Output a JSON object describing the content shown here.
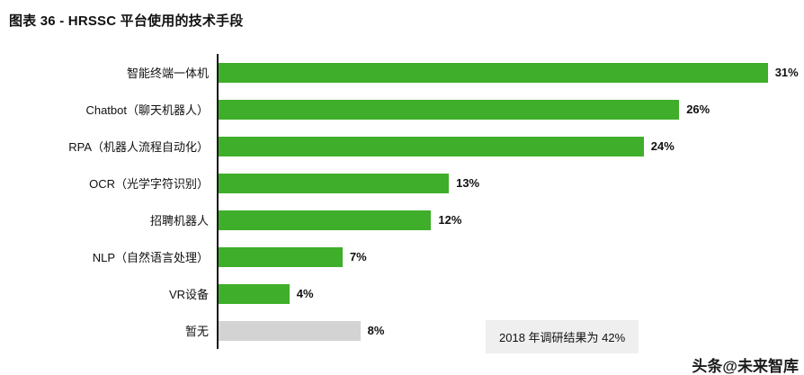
{
  "title": "图表 36 - HRSSC 平台使用的技术手段",
  "chart_data": {
    "type": "bar",
    "orientation": "horizontal",
    "title": "图表 36 - HRSSC 平台使用的技术手段",
    "categories": [
      "智能终端一体机",
      "Chatbot（聊天机器人）",
      "RPA（机器人流程自动化）",
      "OCR（光学字符识别）",
      "招聘机器人",
      "NLP（自然语言处理）",
      "VR设备",
      "暂无"
    ],
    "values": [
      31,
      26,
      24,
      13,
      12,
      7,
      4,
      8
    ],
    "value_labels": [
      "31%",
      "26%",
      "24%",
      "13%",
      "12%",
      "7%",
      "4%",
      "8%"
    ],
    "bar_colors": [
      "#3fae2a",
      "#3fae2a",
      "#3fae2a",
      "#3fae2a",
      "#3fae2a",
      "#3fae2a",
      "#3fae2a",
      "#d3d3d3"
    ],
    "xlim": [
      0,
      33
    ],
    "grid": false,
    "legend": false,
    "annotation": "2018 年调研结果为 42%"
  },
  "colors": {
    "bar_green": "#3fae2a",
    "bar_gray": "#d3d3d3",
    "axis": "#161616",
    "annotation_bg": "#efefef",
    "text": "#111111"
  },
  "watermark": {
    "text": "头条@未来智库"
  }
}
